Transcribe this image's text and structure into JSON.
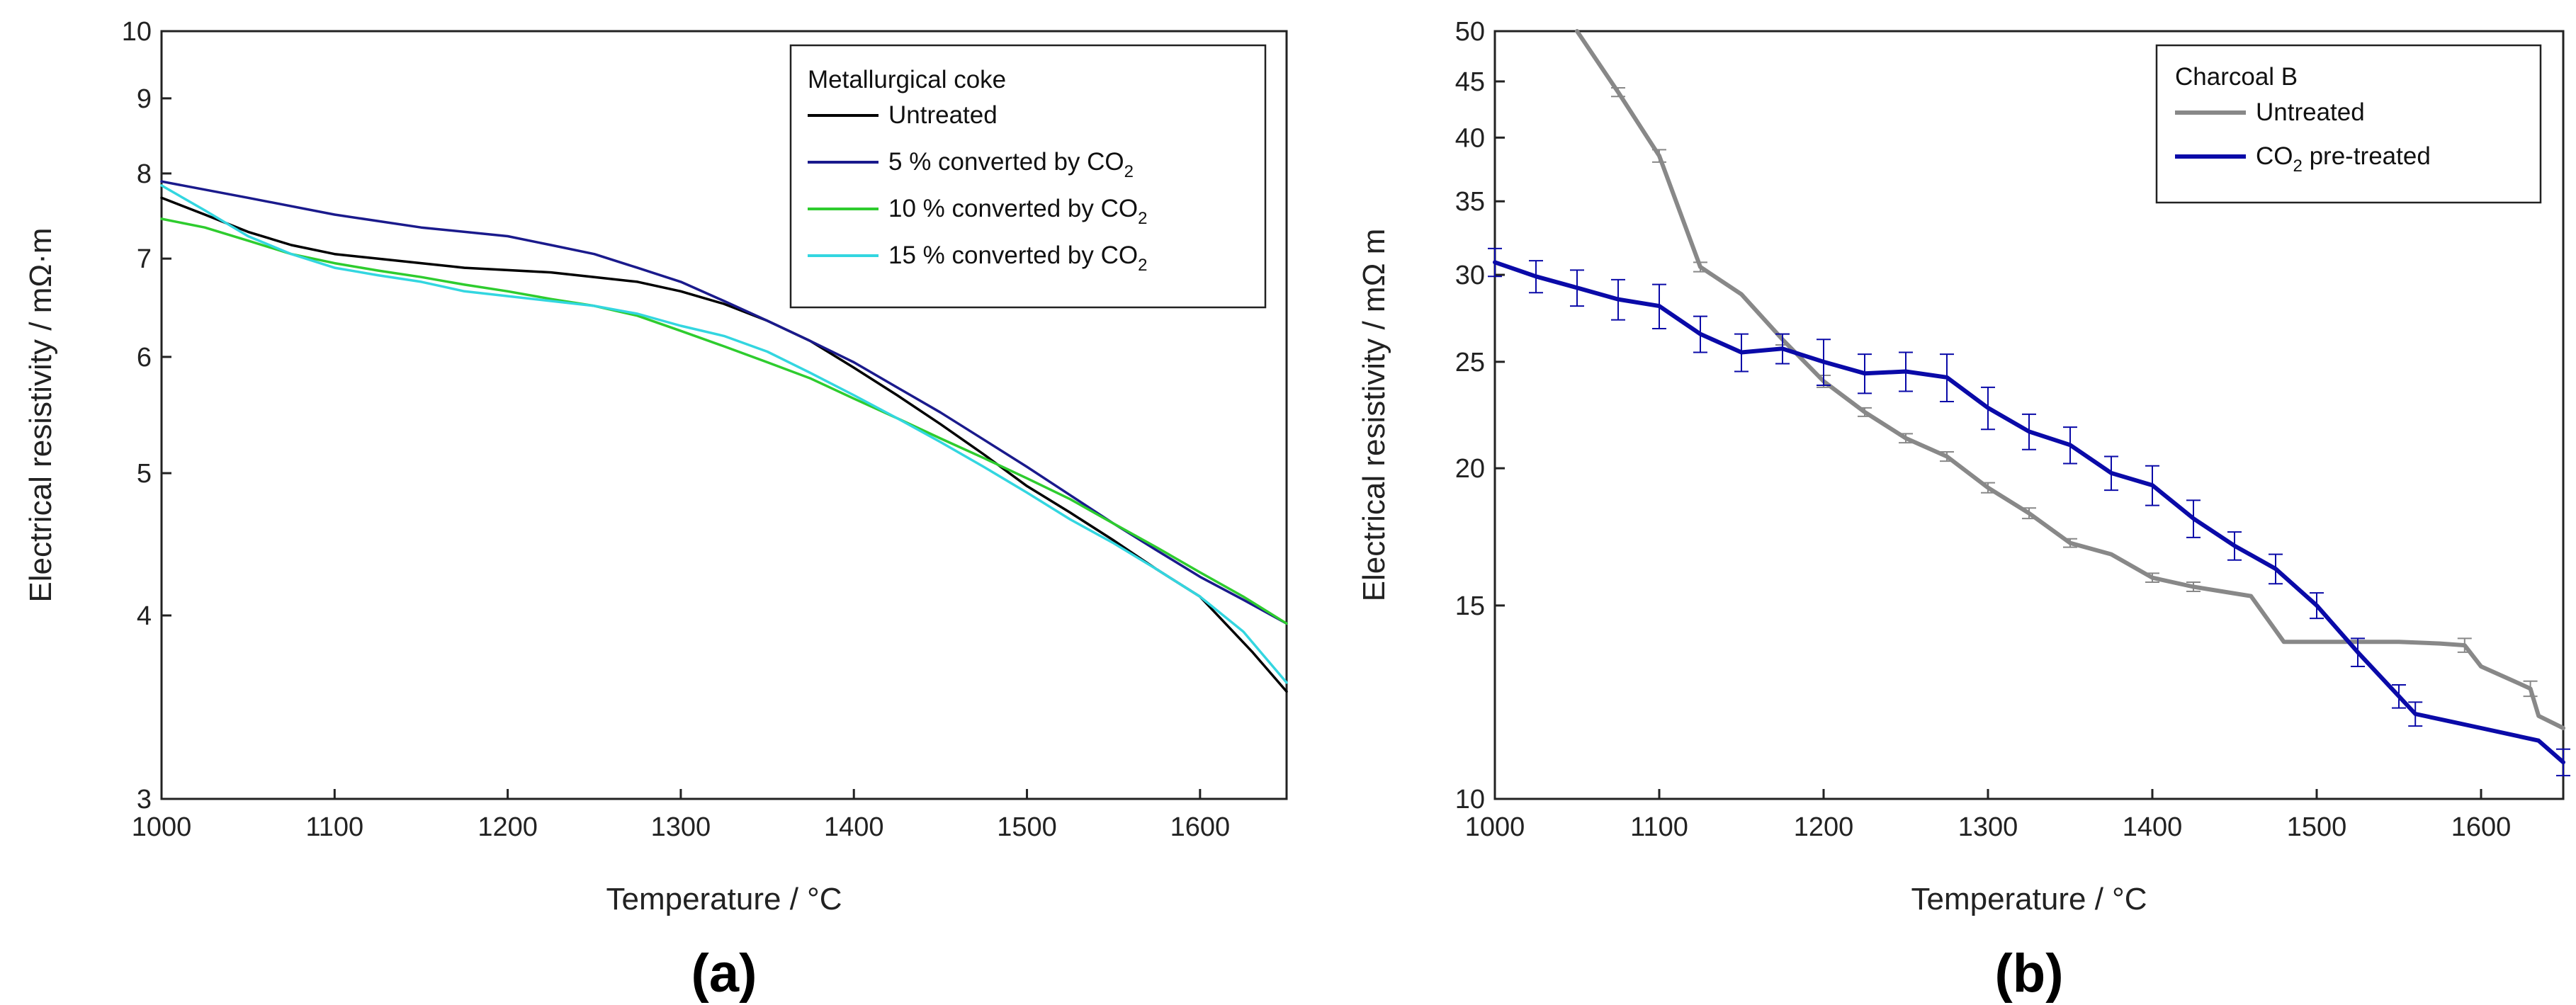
{
  "chart_data": [
    {
      "type": "line",
      "panel_label": "(a)",
      "xlabel": "Temperature / °C",
      "ylabel": "Electrical resistivity / mΩ·m",
      "yscale": "log",
      "xlim": [
        1000,
        1650
      ],
      "ylim": [
        3,
        10
      ],
      "xticks": [
        1000,
        1100,
        1200,
        1300,
        1400,
        1500,
        1600
      ],
      "yticks": [
        3,
        4,
        5,
        6,
        7,
        8,
        9,
        10
      ],
      "legend_title": "Metallurgical coke",
      "legend_position": "top-right",
      "series": [
        {
          "name": "Untreated",
          "label_main": "Untreated",
          "label_sub": "",
          "label_tail": "",
          "color": "#000000",
          "points": [
            [
              1000,
              7.7
            ],
            [
              1025,
              7.5
            ],
            [
              1050,
              7.3
            ],
            [
              1075,
              7.15
            ],
            [
              1100,
              7.05
            ],
            [
              1150,
              6.95
            ],
            [
              1175,
              6.9
            ],
            [
              1225,
              6.85
            ],
            [
              1250,
              6.8
            ],
            [
              1275,
              6.75
            ],
            [
              1300,
              6.65
            ],
            [
              1325,
              6.52
            ],
            [
              1350,
              6.35
            ],
            [
              1375,
              6.15
            ],
            [
              1400,
              5.9
            ],
            [
              1425,
              5.65
            ],
            [
              1450,
              5.4
            ],
            [
              1475,
              5.15
            ],
            [
              1500,
              4.9
            ],
            [
              1525,
              4.7
            ],
            [
              1550,
              4.5
            ],
            [
              1575,
              4.3
            ],
            [
              1600,
              4.12
            ],
            [
              1630,
              3.78
            ],
            [
              1650,
              3.55
            ]
          ]
        },
        {
          "name": "5 % converted by CO2",
          "label_main": "5 % converted by CO",
          "label_sub": "2",
          "label_tail": "",
          "color": "#1a1a8c",
          "points": [
            [
              1000,
              7.9
            ],
            [
              1050,
              7.7
            ],
            [
              1100,
              7.5
            ],
            [
              1150,
              7.35
            ],
            [
              1200,
              7.25
            ],
            [
              1225,
              7.15
            ],
            [
              1250,
              7.05
            ],
            [
              1275,
              6.9
            ],
            [
              1300,
              6.75
            ],
            [
              1325,
              6.55
            ],
            [
              1350,
              6.35
            ],
            [
              1375,
              6.15
            ],
            [
              1400,
              5.95
            ],
            [
              1425,
              5.72
            ],
            [
              1450,
              5.5
            ],
            [
              1475,
              5.27
            ],
            [
              1500,
              5.05
            ],
            [
              1525,
              4.83
            ],
            [
              1550,
              4.62
            ],
            [
              1575,
              4.43
            ],
            [
              1600,
              4.25
            ],
            [
              1625,
              4.1
            ],
            [
              1650,
              3.95
            ]
          ]
        },
        {
          "name": "10 % converted by CO2",
          "label_main": "10 % converted by CO",
          "label_sub": "2",
          "label_tail": "",
          "color": "#2ecc2e",
          "points": [
            [
              1000,
              7.45
            ],
            [
              1025,
              7.35
            ],
            [
              1050,
              7.2
            ],
            [
              1075,
              7.05
            ],
            [
              1100,
              6.95
            ],
            [
              1125,
              6.87
            ],
            [
              1150,
              6.8
            ],
            [
              1175,
              6.72
            ],
            [
              1200,
              6.65
            ],
            [
              1225,
              6.57
            ],
            [
              1250,
              6.5
            ],
            [
              1275,
              6.4
            ],
            [
              1300,
              6.25
            ],
            [
              1325,
              6.1
            ],
            [
              1350,
              5.95
            ],
            [
              1375,
              5.8
            ],
            [
              1400,
              5.62
            ],
            [
              1425,
              5.45
            ],
            [
              1450,
              5.28
            ],
            [
              1475,
              5.12
            ],
            [
              1500,
              4.96
            ],
            [
              1525,
              4.8
            ],
            [
              1550,
              4.62
            ],
            [
              1575,
              4.45
            ],
            [
              1600,
              4.28
            ],
            [
              1625,
              4.12
            ],
            [
              1650,
              3.95
            ]
          ]
        },
        {
          "name": "15 % converted by CO2",
          "label_main": "15 % converted by CO",
          "label_sub": "2",
          "label_tail": "",
          "color": "#33d6e0",
          "points": [
            [
              1000,
              7.85
            ],
            [
              1025,
              7.55
            ],
            [
              1050,
              7.25
            ],
            [
              1075,
              7.05
            ],
            [
              1100,
              6.9
            ],
            [
              1125,
              6.82
            ],
            [
              1150,
              6.75
            ],
            [
              1175,
              6.65
            ],
            [
              1200,
              6.6
            ],
            [
              1225,
              6.55
            ],
            [
              1250,
              6.5
            ],
            [
              1275,
              6.42
            ],
            [
              1300,
              6.3
            ],
            [
              1325,
              6.2
            ],
            [
              1350,
              6.05
            ],
            [
              1375,
              5.85
            ],
            [
              1400,
              5.65
            ],
            [
              1425,
              5.45
            ],
            [
              1450,
              5.25
            ],
            [
              1475,
              5.05
            ],
            [
              1500,
              4.85
            ],
            [
              1525,
              4.65
            ],
            [
              1550,
              4.48
            ],
            [
              1575,
              4.3
            ],
            [
              1600,
              4.12
            ],
            [
              1625,
              3.9
            ],
            [
              1650,
              3.6
            ]
          ]
        }
      ]
    },
    {
      "type": "line",
      "panel_label": "(b)",
      "xlabel": "Temperature / °C",
      "ylabel": "Electrical resistivity / mΩ m",
      "yscale": "log",
      "xlim": [
        1000,
        1650
      ],
      "ylim": [
        10,
        50
      ],
      "xticks": [
        1000,
        1100,
        1200,
        1300,
        1400,
        1500,
        1600
      ],
      "yticks": [
        10,
        15,
        20,
        25,
        30,
        35,
        40,
        45,
        50
      ],
      "legend_title": "Charcoal B",
      "legend_position": "top-right",
      "series": [
        {
          "name": "Untreated",
          "label_main": "Untreated",
          "label_sub": "",
          "label_tail": "",
          "color": "#888888",
          "points": [
            [
              1050,
              50
            ],
            [
              1075,
              44
            ],
            [
              1100,
              38.5
            ],
            [
              1125,
              30.5
            ],
            [
              1150,
              28.8
            ],
            [
              1175,
              26.2
            ],
            [
              1200,
              24
            ],
            [
              1225,
              22.5
            ],
            [
              1250,
              21.3
            ],
            [
              1275,
              20.5
            ],
            [
              1300,
              19.2
            ],
            [
              1325,
              18.2
            ],
            [
              1350,
              17.1
            ],
            [
              1375,
              16.7
            ],
            [
              1400,
              15.9
            ],
            [
              1425,
              15.6
            ],
            [
              1460,
              15.3
            ],
            [
              1480,
              13.9
            ],
            [
              1500,
              13.9
            ],
            [
              1525,
              13.9
            ],
            [
              1550,
              13.9
            ],
            [
              1575,
              13.85
            ],
            [
              1590,
              13.8
            ],
            [
              1600,
              13.2
            ],
            [
              1620,
              12.8
            ],
            [
              1630,
              12.6
            ],
            [
              1635,
              11.9
            ],
            [
              1650,
              11.6
            ]
          ],
          "errors": [
            [
              1075,
              0.4
            ],
            [
              1100,
              0.5
            ],
            [
              1125,
              0.3
            ],
            [
              1175,
              0.3
            ],
            [
              1200,
              0.3
            ],
            [
              1225,
              0.2
            ],
            [
              1250,
              0.2
            ],
            [
              1275,
              0.2
            ],
            [
              1300,
              0.2
            ],
            [
              1325,
              0.2
            ],
            [
              1350,
              0.15
            ],
            [
              1400,
              0.15
            ],
            [
              1425,
              0.15
            ],
            [
              1590,
              0.2
            ],
            [
              1610,
              0.2
            ],
            [
              1630,
              0.2
            ]
          ]
        },
        {
          "name": "CO2 pre-treated",
          "label_main": "CO",
          "label_sub": "2",
          "label_tail": " pre-treated",
          "color": "#0a0aa8",
          "points": [
            [
              1000,
              30.8
            ],
            [
              1025,
              29.9
            ],
            [
              1050,
              29.2
            ],
            [
              1075,
              28.5
            ],
            [
              1100,
              28.1
            ],
            [
              1125,
              26.5
            ],
            [
              1150,
              25.5
            ],
            [
              1175,
              25.7
            ],
            [
              1200,
              25
            ],
            [
              1225,
              24.4
            ],
            [
              1250,
              24.5
            ],
            [
              1275,
              24.2
            ],
            [
              1300,
              22.7
            ],
            [
              1325,
              21.6
            ],
            [
              1350,
              21
            ],
            [
              1375,
              19.8
            ],
            [
              1400,
              19.3
            ],
            [
              1425,
              18
            ],
            [
              1450,
              17
            ],
            [
              1475,
              16.2
            ],
            [
              1500,
              15
            ],
            [
              1525,
              13.6
            ],
            [
              1550,
              12.4
            ],
            [
              1560,
              11.95
            ],
            [
              1600,
              11.6
            ],
            [
              1635,
              11.3
            ],
            [
              1650,
              10.8
            ]
          ],
          "errors": [
            [
              1000,
              0.9
            ],
            [
              1025,
              1.0
            ],
            [
              1050,
              1.1
            ],
            [
              1075,
              1.2
            ],
            [
              1100,
              1.3
            ],
            [
              1125,
              1.0
            ],
            [
              1150,
              1.0
            ],
            [
              1175,
              0.8
            ],
            [
              1200,
              1.2
            ],
            [
              1225,
              1.0
            ],
            [
              1250,
              1.0
            ],
            [
              1275,
              1.2
            ],
            [
              1300,
              1.0
            ],
            [
              1325,
              0.8
            ],
            [
              1350,
              0.8
            ],
            [
              1375,
              0.7
            ],
            [
              1400,
              0.8
            ],
            [
              1425,
              0.7
            ],
            [
              1450,
              0.5
            ],
            [
              1475,
              0.5
            ],
            [
              1500,
              0.4
            ],
            [
              1525,
              0.4
            ],
            [
              1550,
              0.3
            ],
            [
              1560,
              0.3
            ],
            [
              1650,
              0.3
            ]
          ]
        }
      ]
    }
  ]
}
